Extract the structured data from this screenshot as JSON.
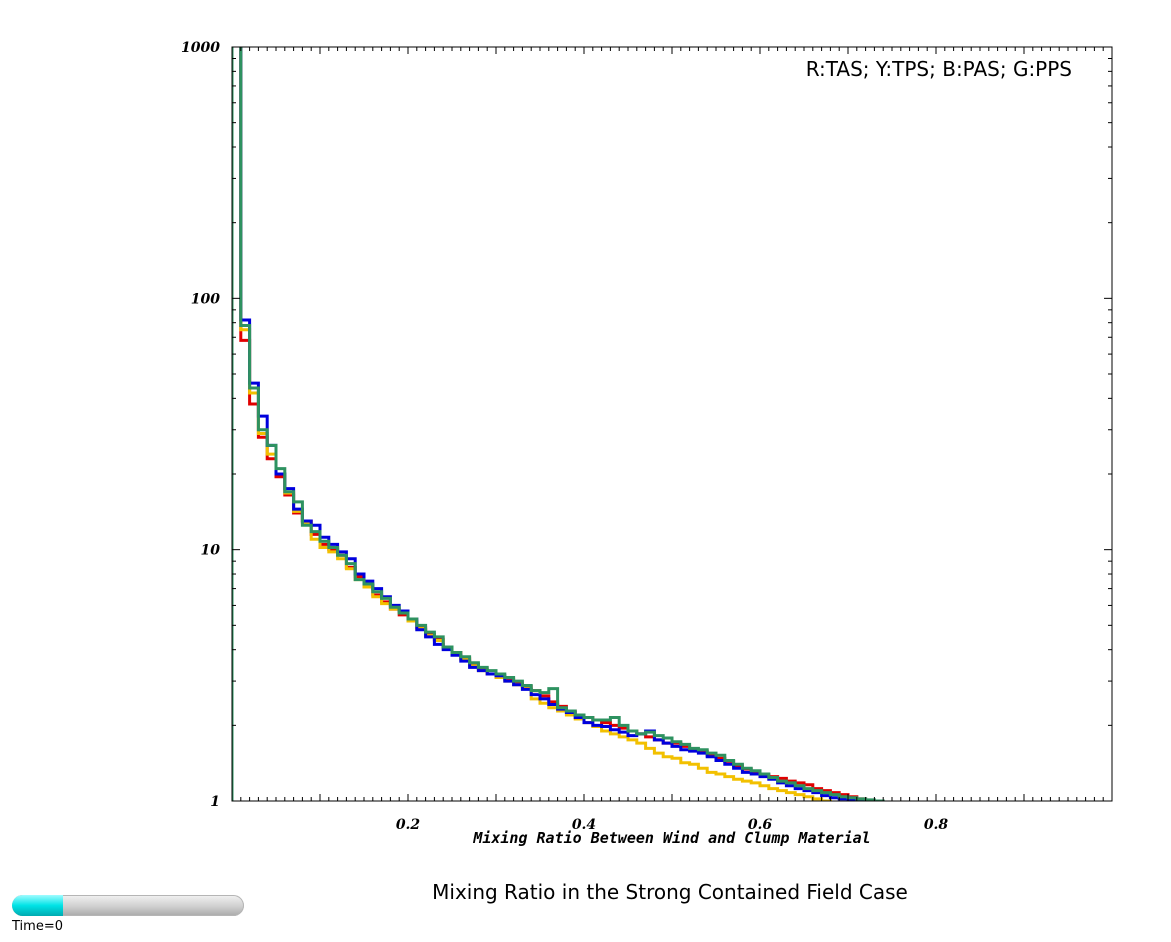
{
  "chart_data": {
    "type": "line",
    "step": true,
    "title": "",
    "xlabel": "Mixing Ratio Between Wind and Clump Material",
    "ylabel": "",
    "xlim": [
      0,
      1
    ],
    "ylim": [
      1,
      1000
    ],
    "yscale": "log",
    "x_ticks": [
      0.2,
      0.4,
      0.6,
      0.8
    ],
    "x_tick_labels": [
      "0.2",
      "0.4",
      "0.6",
      "0.8"
    ],
    "y_ticks": [
      1,
      10,
      100,
      1000
    ],
    "y_tick_labels": [
      "1",
      "10",
      "100",
      "1000"
    ],
    "legend_text": "R:TAS; Y:TPS; B:PAS; G:PPS",
    "legend_position": "top-right",
    "grid": false,
    "bin_width": 0.01,
    "bin_start": 0.005,
    "series": [
      {
        "color": "#e00000",
        "values": [
          5000,
          68,
          38,
          28,
          23,
          19.5,
          16.5,
          14,
          13,
          11.5,
          10.5,
          10,
          9.5,
          8.5,
          7.8,
          7.2,
          6.6,
          6.2,
          5.8,
          5.5,
          5.2,
          4.9,
          4.6,
          4.4,
          4.1,
          3.9,
          3.7,
          3.5,
          3.35,
          3.2,
          3.1,
          3.05,
          2.95,
          2.85,
          2.75,
          2.62,
          2.48,
          2.38,
          2.28,
          2.2,
          2.15,
          2.1,
          2.05,
          2.0,
          1.95,
          1.9,
          1.85,
          1.8,
          1.75,
          1.7,
          1.7,
          1.65,
          1.6,
          1.58,
          1.52,
          1.48,
          1.44,
          1.38,
          1.34,
          1.3,
          1.27,
          1.25,
          1.23,
          1.2,
          1.18,
          1.16,
          1.12,
          1.1,
          1.08,
          1.06,
          1.04,
          1.02,
          1.0
        ]
      },
      {
        "color": "#f2c000",
        "values": [
          5000,
          75,
          42,
          29,
          24,
          20,
          16.8,
          14.2,
          12.8,
          11,
          10.2,
          9.8,
          9.2,
          8.4,
          7.6,
          7.1,
          6.5,
          6.1,
          5.8,
          5.6,
          5.2,
          4.85,
          4.55,
          4.35,
          4.05,
          3.85,
          3.65,
          3.45,
          3.3,
          3.2,
          3.1,
          3.0,
          2.9,
          2.8,
          2.55,
          2.45,
          2.35,
          2.28,
          2.2,
          2.12,
          2.05,
          1.98,
          1.9,
          1.85,
          1.8,
          1.75,
          1.7,
          1.62,
          1.55,
          1.5,
          1.48,
          1.42,
          1.4,
          1.35,
          1.3,
          1.28,
          1.25,
          1.22,
          1.2,
          1.18,
          1.15,
          1.12,
          1.1,
          1.08,
          1.06,
          1.04,
          1.02,
          1.0
        ]
      },
      {
        "color": "#0000dd",
        "values": [
          5000,
          82,
          46,
          34,
          26,
          20,
          17.5,
          14.5,
          13,
          12.5,
          11.2,
          10.5,
          9.8,
          9.2,
          8,
          7.5,
          7,
          6.5,
          6.0,
          5.7,
          5.3,
          4.8,
          4.5,
          4.2,
          4.0,
          3.8,
          3.6,
          3.4,
          3.3,
          3.2,
          3.15,
          3.0,
          2.9,
          2.78,
          2.65,
          2.55,
          2.42,
          2.32,
          2.25,
          2.15,
          2.05,
          2.0,
          1.98,
          1.92,
          1.88,
          1.82,
          1.85,
          1.9,
          1.75,
          1.7,
          1.65,
          1.6,
          1.58,
          1.55,
          1.5,
          1.45,
          1.4,
          1.35,
          1.3,
          1.28,
          1.25,
          1.22,
          1.18,
          1.15,
          1.12,
          1.1,
          1.08,
          1.05,
          1.03,
          1.02,
          1.01,
          1.0
        ]
      },
      {
        "color": "#2e9260",
        "values": [
          5000,
          78,
          44,
          30,
          26,
          21,
          17,
          15.5,
          12.5,
          11.8,
          10.8,
          10.2,
          9.5,
          8.8,
          7.6,
          7.3,
          6.8,
          6.4,
          5.9,
          5.6,
          5.3,
          5.0,
          4.7,
          4.5,
          4.1,
          3.9,
          3.75,
          3.55,
          3.4,
          3.3,
          3.2,
          3.1,
          3.0,
          2.88,
          2.75,
          2.7,
          2.8,
          2.35,
          2.28,
          2.2,
          2.15,
          2.1,
          2.1,
          2.15,
          2.0,
          1.9,
          1.85,
          1.88,
          1.82,
          1.78,
          1.72,
          1.68,
          1.62,
          1.6,
          1.55,
          1.52,
          1.45,
          1.4,
          1.35,
          1.32,
          1.28,
          1.24,
          1.2,
          1.18,
          1.15,
          1.12,
          1.1,
          1.08,
          1.06,
          1.04,
          1.03,
          1.02,
          1.01,
          1.0
        ]
      }
    ]
  },
  "caption": "Mixing Ratio in the Strong Contained Field Case",
  "time_slider": {
    "label": "Time=0",
    "progress": 0.22,
    "fill_color": "#00e3e6"
  }
}
